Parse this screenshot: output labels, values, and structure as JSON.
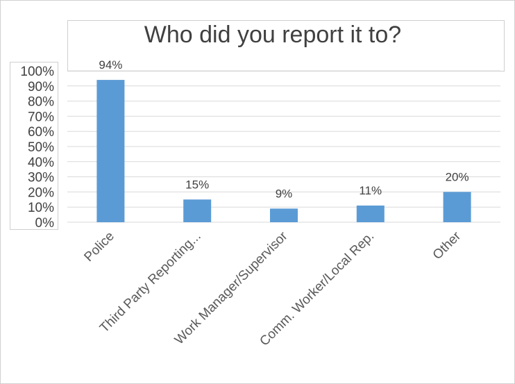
{
  "chart_data": {
    "type": "bar",
    "title": "Who did you report it to?",
    "categories": [
      "Police",
      "Third Party Reporting...",
      "Work Manager/Supervisor",
      "Comm. Worker/Local Rep.",
      "Other"
    ],
    "values": [
      94,
      15,
      9,
      11,
      20
    ],
    "data_labels": [
      "94%",
      "15%",
      "9%",
      "11%",
      "20%"
    ],
    "ytick_labels": [
      "0%",
      "10%",
      "20%",
      "30%",
      "40%",
      "50%",
      "60%",
      "70%",
      "80%",
      "90%",
      "100%"
    ],
    "ylim": [
      0,
      100
    ],
    "grid": true,
    "legend": "none",
    "bar_color": "#5B9BD5",
    "grid_color": "#d9d9d9"
  }
}
